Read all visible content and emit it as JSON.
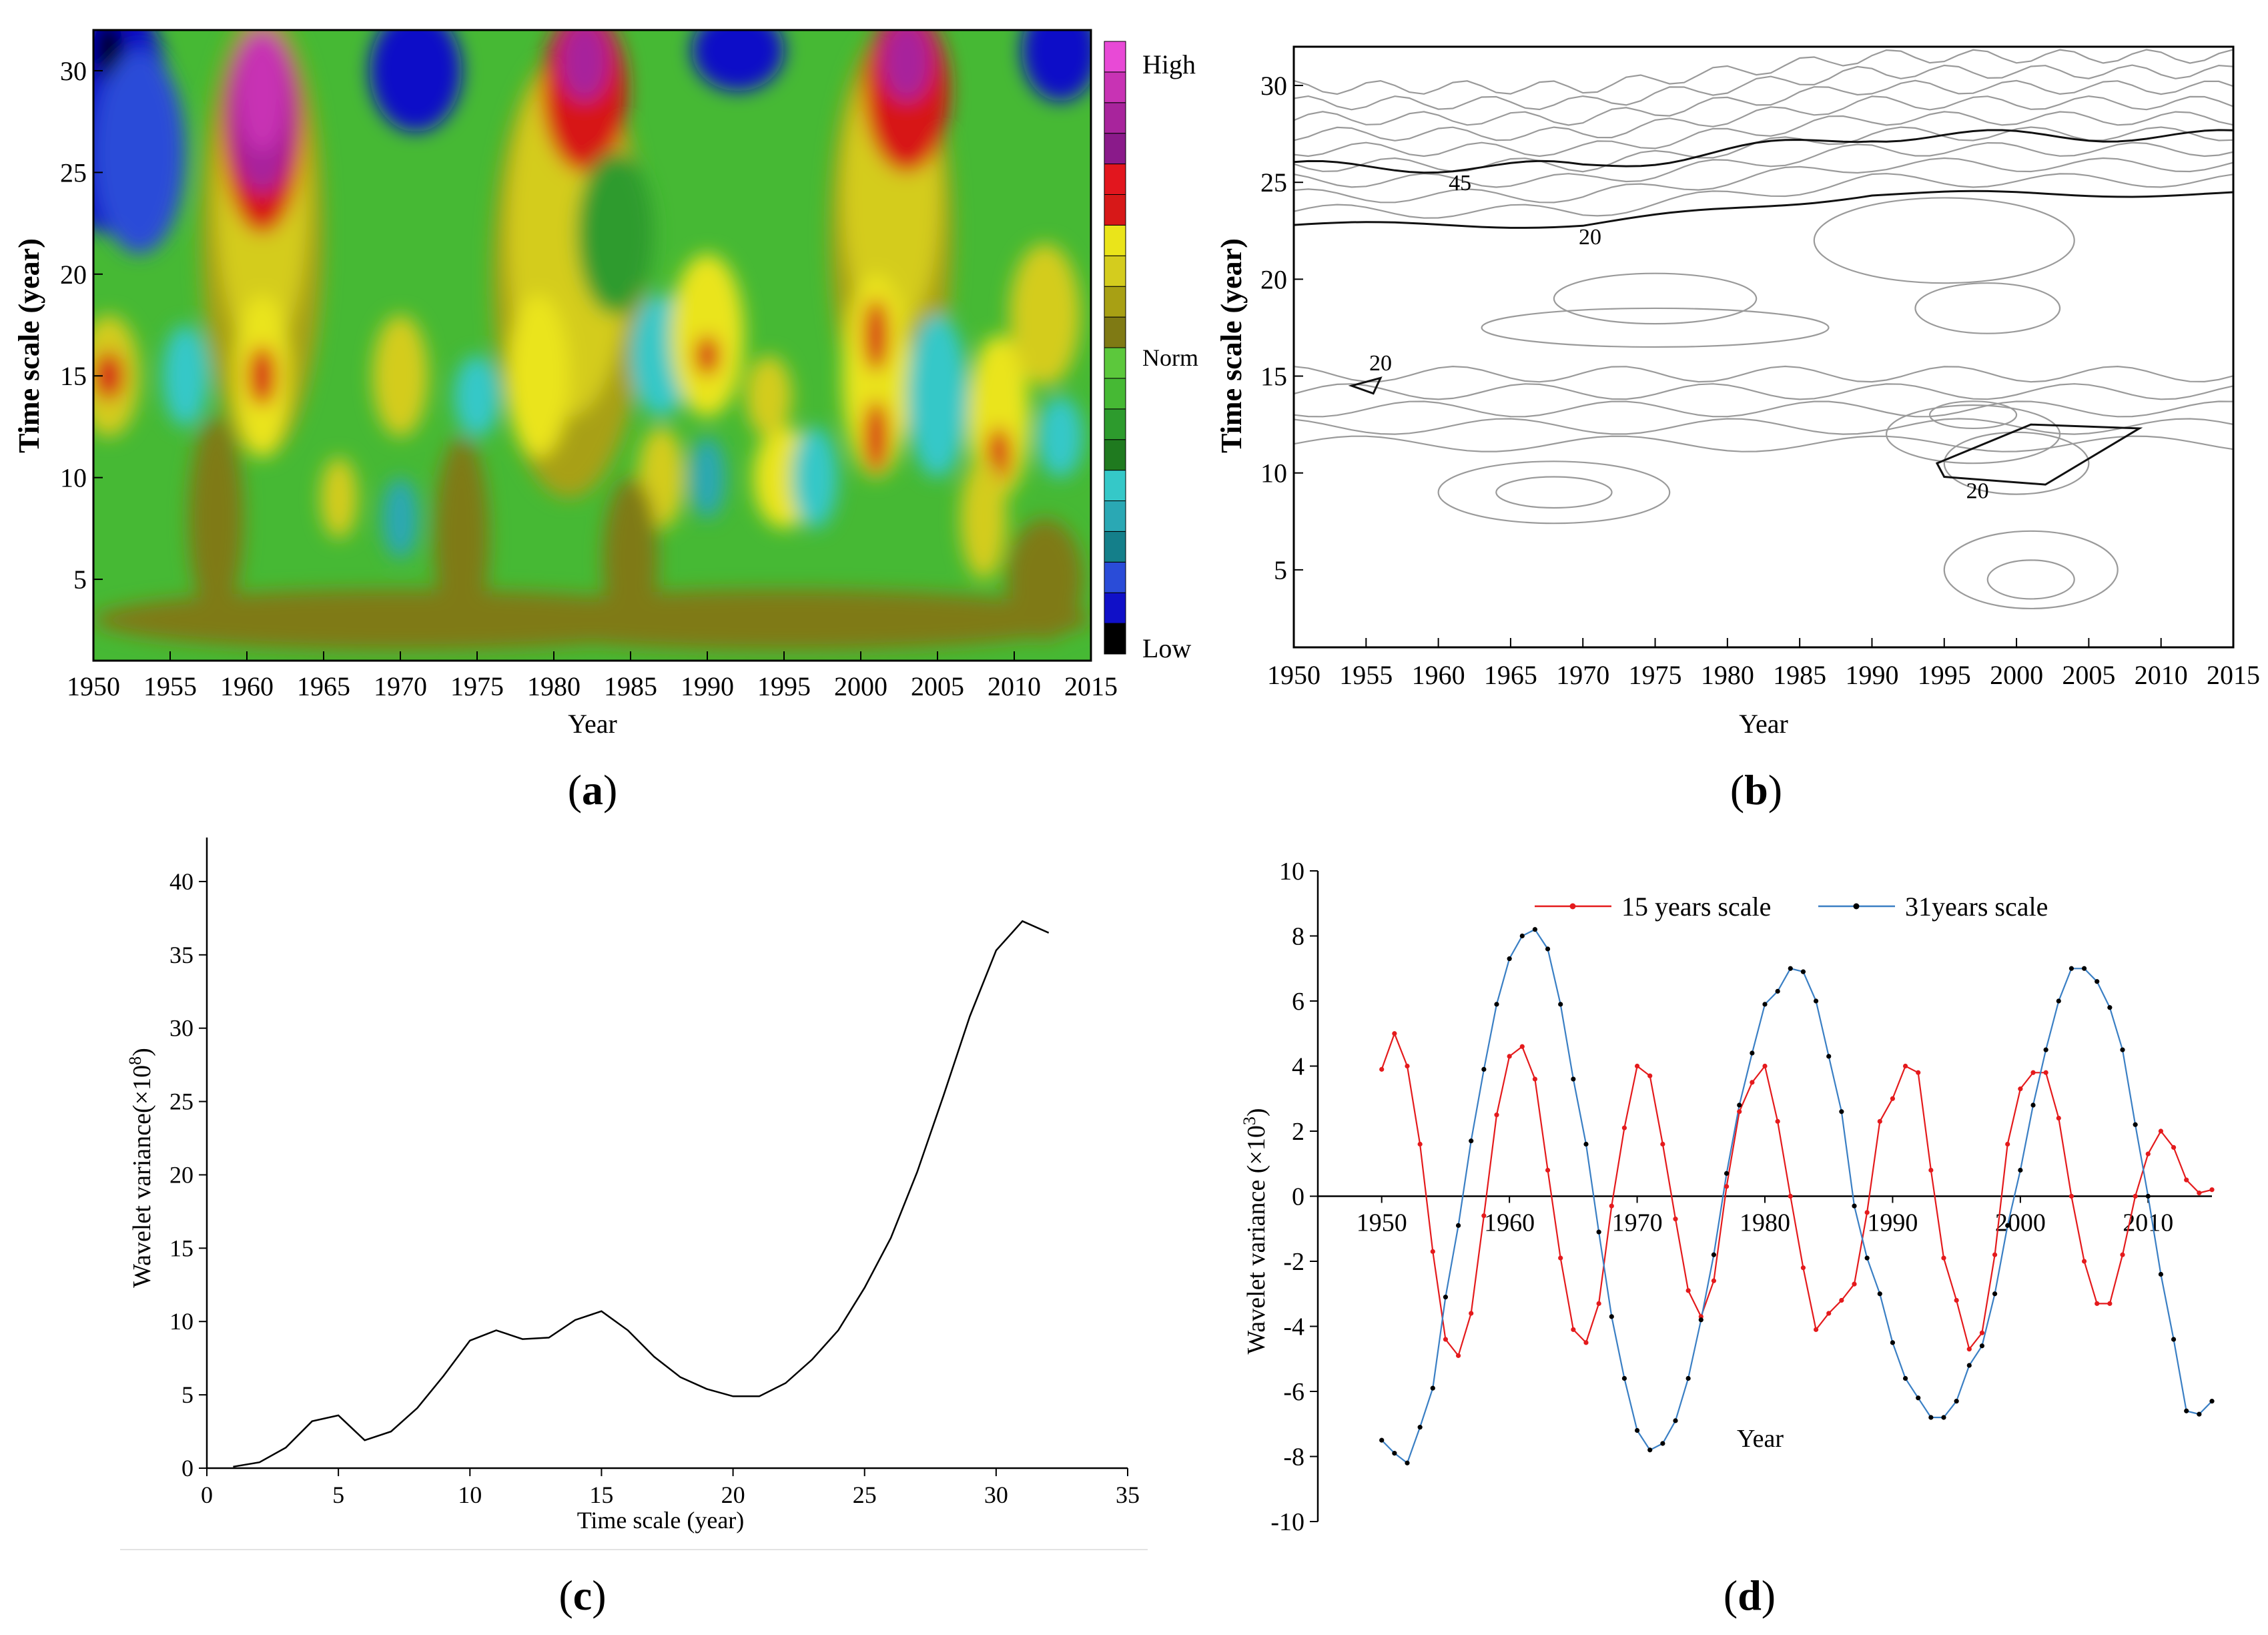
{
  "colors": {
    "axis": "#000000",
    "red_series": "#e41a1c",
    "blue_series": "#3a7fc4",
    "dot": "#000000",
    "contour_gray": "#9a9a9a",
    "contour_black": "#111111",
    "colorbar": [
      "#000000",
      "#1010c8",
      "#2a4cd8",
      "#147f8a",
      "#2aa8b4",
      "#35c8c8",
      "#1f7a1f",
      "#2d9b2d",
      "#46b934",
      "#5cc83c",
      "#7f7a14",
      "#a8a014",
      "#d4cc1e",
      "#eae41a",
      "#d71818",
      "#e2161e",
      "#8a1a8a",
      "#a8249c",
      "#c833b4",
      "#e84ad6"
    ]
  },
  "chart_data": [
    {
      "id": "a",
      "type": "heatmap",
      "panel_label": "a",
      "title": "",
      "xlabel": "Year",
      "ylabel": "Time scale (year)",
      "xlim": [
        1950,
        2015
      ],
      "ylim": [
        1,
        32
      ],
      "xticks": [
        1950,
        1955,
        1960,
        1965,
        1970,
        1975,
        1980,
        1985,
        1990,
        1995,
        2000,
        2005,
        2010,
        2015
      ],
      "yticks": [
        5,
        10,
        15,
        20,
        25,
        30
      ],
      "colorbar_labels": {
        "high": "High",
        "norm": "Norm",
        "low": "Low"
      },
      "description_levels": 20
    },
    {
      "id": "b",
      "type": "heatmap",
      "panel_label": "b",
      "xlabel": "Year",
      "ylabel": "Time scale (year)",
      "xlim": [
        1950,
        2015
      ],
      "ylim": [
        1,
        32
      ],
      "xticks": [
        1950,
        1955,
        1960,
        1965,
        1970,
        1975,
        1980,
        1985,
        1990,
        1995,
        2000,
        2005,
        2010,
        2015
      ],
      "yticks": [
        5,
        10,
        15,
        20,
        25,
        30
      ],
      "contour_labels": [
        {
          "text": "45",
          "x": 1961.5,
          "y": 24.6
        },
        {
          "text": "20",
          "x": 1970.5,
          "y": 21.8
        },
        {
          "text": "20",
          "x": 1956.0,
          "y": 15.3
        },
        {
          "text": "20",
          "x": 1997.3,
          "y": 8.7
        }
      ]
    },
    {
      "id": "c",
      "type": "line",
      "panel_label": "c",
      "xlabel": "Time scale (year)",
      "ylabel": "Wavelet variance(×10",
      "ylabel_sup": "8",
      "ylabel_end": ")",
      "xlim": [
        0,
        35
      ],
      "ylim": [
        0,
        43
      ],
      "xticks": [
        0,
        5,
        10,
        15,
        20,
        25,
        30,
        35
      ],
      "yticks": [
        0,
        5,
        10,
        15,
        20,
        25,
        30,
        35,
        40
      ],
      "x": [
        1,
        2,
        3,
        4,
        5,
        6,
        7,
        8,
        9,
        10,
        11,
        12,
        13,
        14,
        15,
        16,
        17,
        18,
        19,
        20,
        21,
        22,
        23,
        24,
        25,
        26,
        27,
        28,
        29,
        30,
        31,
        32
      ],
      "values": [
        0.1,
        0.4,
        1.4,
        3.2,
        3.6,
        1.9,
        2.5,
        4.1,
        6.3,
        8.7,
        9.4,
        8.8,
        8.9,
        10.1,
        10.7,
        9.4,
        7.6,
        6.2,
        5.4,
        4.9,
        4.9,
        5.8,
        7.4,
        9.4,
        12.3,
        15.7,
        20.2,
        25.4,
        30.8,
        35.3,
        37.3,
        36.5
      ]
    },
    {
      "id": "d",
      "type": "line",
      "panel_label": "d",
      "xlabel": "Year",
      "ylabel": "Wavelet variance (×10",
      "ylabel_sup": "3",
      "ylabel_end": ")",
      "xlim": [
        1945,
        2015
      ],
      "ylim": [
        -10,
        10
      ],
      "xticks": [
        1950,
        1960,
        1970,
        1980,
        1990,
        2000,
        2010
      ],
      "yticks": [
        -10,
        -8,
        -6,
        -4,
        -2,
        0,
        2,
        4,
        6,
        8,
        10
      ],
      "legend_position": "top",
      "x": [
        1950,
        1951,
        1952,
        1953,
        1954,
        1955,
        1956,
        1957,
        1958,
        1959,
        1960,
        1961,
        1962,
        1963,
        1964,
        1965,
        1966,
        1967,
        1968,
        1969,
        1970,
        1971,
        1972,
        1973,
        1974,
        1975,
        1976,
        1977,
        1978,
        1979,
        1980,
        1981,
        1982,
        1983,
        1984,
        1985,
        1986,
        1987,
        1988,
        1989,
        1990,
        1991,
        1992,
        1993,
        1994,
        1995,
        1996,
        1997,
        1998,
        1999,
        2000,
        2001,
        2002,
        2003,
        2004,
        2005,
        2006,
        2007,
        2008,
        2009,
        2010,
        2011,
        2012,
        2013,
        2014,
        2015
      ],
      "series": [
        {
          "name": "15 years scale",
          "values": [
            3.9,
            5.0,
            4.0,
            1.6,
            -1.7,
            -4.4,
            -4.9,
            -3.6,
            -0.6,
            2.5,
            4.3,
            4.6,
            3.6,
            0.8,
            -1.9,
            -4.1,
            -4.5,
            -3.3,
            -0.3,
            2.1,
            4.0,
            3.7,
            1.6,
            -0.7,
            -2.9,
            -3.7,
            -2.6,
            0.3,
            2.6,
            3.5,
            4.0,
            2.3,
            0.0,
            -2.2,
            -4.1,
            -3.6,
            -3.2,
            -2.7,
            -0.5,
            2.3,
            3.0,
            4.0,
            3.8,
            0.8,
            -1.9,
            -3.2,
            -4.7,
            -4.2,
            -1.8,
            1.6,
            3.3,
            3.8,
            3.8,
            2.4,
            0.0,
            -2.0,
            -3.3,
            -3.3,
            -1.8,
            0.0,
            1.3,
            2.0,
            1.5,
            0.5,
            0.1,
            0.2
          ]
        },
        {
          "name": "31years scale",
          "values": [
            -7.5,
            -7.9,
            -8.2,
            -7.1,
            -5.9,
            -3.1,
            -0.9,
            1.7,
            3.9,
            5.9,
            7.3,
            8.0,
            8.2,
            7.6,
            5.9,
            3.6,
            1.6,
            -1.1,
            -3.7,
            -5.6,
            -7.2,
            -7.8,
            -7.6,
            -6.9,
            -5.6,
            -3.8,
            -1.8,
            0.7,
            2.8,
            4.4,
            5.9,
            6.3,
            7.0,
            6.9,
            6.0,
            4.3,
            2.6,
            -0.3,
            -1.9,
            -3.0,
            -4.5,
            -5.6,
            -6.2,
            -6.8,
            -6.8,
            -6.3,
            -5.2,
            -4.6,
            -3.0,
            -0.9,
            0.8,
            2.8,
            4.5,
            6.0,
            7.0,
            7.0,
            6.6,
            5.8,
            4.5,
            2.2,
            0.0,
            -2.4,
            -4.4,
            -6.6,
            -6.7,
            -6.3
          ]
        }
      ],
      "axis_label_text": "Year"
    }
  ]
}
